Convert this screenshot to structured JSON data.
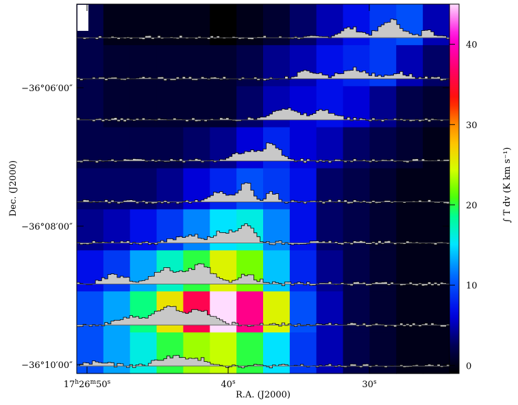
{
  "chart_data": {
    "type": "heatmap",
    "title": "",
    "xlabel": "R.A. (J2000)",
    "ylabel": "Dec. (J2000)",
    "colorbar_label": "∫ T dv (K km s⁻¹)",
    "x_ticks": [
      {
        "value_s": 50,
        "h": "17",
        "m": "26",
        "s": "50"
      },
      {
        "value_s": 40,
        "s": "40"
      },
      {
        "value_s": 30,
        "s": "30"
      }
    ],
    "y_ticks": [
      {
        "value_min": 6,
        "label": "−36°06′00″"
      },
      {
        "value_min": 8,
        "label": "−36°08′00″"
      },
      {
        "value_min": 10,
        "label": "−36°10′00″"
      }
    ],
    "colorbar_ticks": [
      0,
      10,
      20,
      30,
      40
    ],
    "colorbar_range": [
      -1,
      45
    ],
    "grid": false,
    "grid_rows": 9,
    "grid_cols": 14,
    "values": [
      [
        2,
        0,
        0,
        0,
        0,
        -1,
        0,
        1,
        3,
        5,
        7,
        9,
        10,
        5
      ],
      [
        2,
        1,
        1,
        1,
        1,
        1,
        2,
        4,
        5,
        7,
        8,
        9,
        5,
        3
      ],
      [
        2,
        1,
        1,
        1,
        1,
        1,
        3,
        5,
        6,
        7,
        6,
        4,
        2,
        1
      ],
      [
        2,
        2,
        2,
        2,
        3,
        4,
        6,
        8,
        6,
        5,
        3,
        2,
        1,
        0
      ],
      [
        3,
        3,
        3,
        4,
        6,
        8,
        10,
        9,
        7,
        3,
        2,
        1,
        0,
        0
      ],
      [
        4,
        5,
        7,
        9,
        12,
        15,
        16,
        12,
        7,
        3,
        2,
        1,
        0,
        0
      ],
      [
        7,
        9,
        13,
        17,
        20,
        25,
        22,
        14,
        8,
        4,
        2,
        1,
        0,
        0
      ],
      [
        10,
        13,
        19,
        26,
        36,
        45,
        38,
        25,
        10,
        5,
        2,
        1,
        0,
        0
      ],
      [
        10,
        13,
        16,
        20,
        23,
        24,
        20,
        15,
        9,
        5,
        2,
        1,
        0,
        0
      ]
    ],
    "spectrum_profiles": [
      {
        "row": 0,
        "peaks": [
          [
            0.73,
            0.04,
            0.5
          ],
          [
            0.84,
            0.04,
            0.9
          ],
          [
            0.94,
            0.02,
            0.5
          ]
        ]
      },
      {
        "row": 1,
        "peaks": [
          [
            0.62,
            0.04,
            0.4
          ],
          [
            0.74,
            0.05,
            0.5
          ],
          [
            0.86,
            0.04,
            0.3
          ]
        ]
      },
      {
        "row": 2,
        "peaks": [
          [
            0.55,
            0.05,
            0.6
          ],
          [
            0.66,
            0.04,
            0.5
          ]
        ]
      },
      {
        "row": 3,
        "peaks": [
          [
            0.45,
            0.04,
            0.5
          ],
          [
            0.52,
            0.03,
            0.9
          ]
        ]
      },
      {
        "row": 4,
        "peaks": [
          [
            0.38,
            0.03,
            0.55
          ],
          [
            0.45,
            0.025,
            1.0
          ],
          [
            0.52,
            0.02,
            0.5
          ]
        ]
      },
      {
        "row": 5,
        "peaks": [
          [
            0.3,
            0.05,
            0.4
          ],
          [
            0.39,
            0.03,
            0.6
          ],
          [
            0.45,
            0.03,
            1.0
          ]
        ]
      },
      {
        "row": 6,
        "peaks": [
          [
            0.1,
            0.04,
            0.45
          ],
          [
            0.24,
            0.05,
            0.75
          ],
          [
            0.33,
            0.04,
            0.95
          ],
          [
            0.45,
            0.04,
            0.45
          ]
        ]
      },
      {
        "row": 7,
        "peaks": [
          [
            0.14,
            0.04,
            0.45
          ],
          [
            0.24,
            0.05,
            0.9
          ],
          [
            0.33,
            0.05,
            0.7
          ]
        ]
      },
      {
        "row": 8,
        "peaks": [
          [
            0.05,
            0.04,
            0.2
          ],
          [
            0.25,
            0.05,
            0.5
          ],
          [
            0.33,
            0.04,
            0.3
          ]
        ]
      }
    ]
  }
}
